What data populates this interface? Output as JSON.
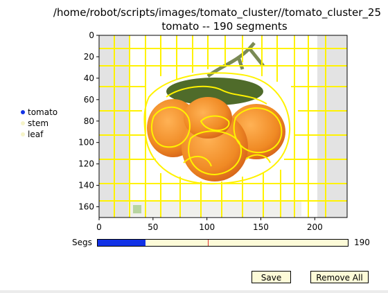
{
  "figure": {
    "title_line1": "/home/robot/scripts/images/tomato_cluster//tomato_cluster_25",
    "title_line2": "tomato -- 190 segments"
  },
  "legend": [
    {
      "label": "tomato",
      "color": "#1232e6"
    },
    {
      "label": "stem",
      "color": "#f5f3c8"
    },
    {
      "label": "leaf",
      "color": "#f5f3c8"
    }
  ],
  "axes": {
    "x_ticks": [
      "0",
      "50",
      "100",
      "150",
      "200"
    ],
    "y_ticks": [
      "0",
      "20",
      "40",
      "60",
      "80",
      "100",
      "120",
      "140",
      "160"
    ],
    "x_range": [
      0,
      230
    ],
    "y_range": [
      0,
      170
    ]
  },
  "slider": {
    "label": "Segs",
    "value_text": "190",
    "fill_fraction": 0.19,
    "initial_marker_fraction": 0.44,
    "fill_color": "#1232e6"
  },
  "buttons": {
    "save": "Save",
    "remove_all": "Remove All"
  },
  "colors": {
    "segment_boundary": "#fff200",
    "tomato": "#f08a24",
    "background_strip": "#e3e3e3"
  }
}
